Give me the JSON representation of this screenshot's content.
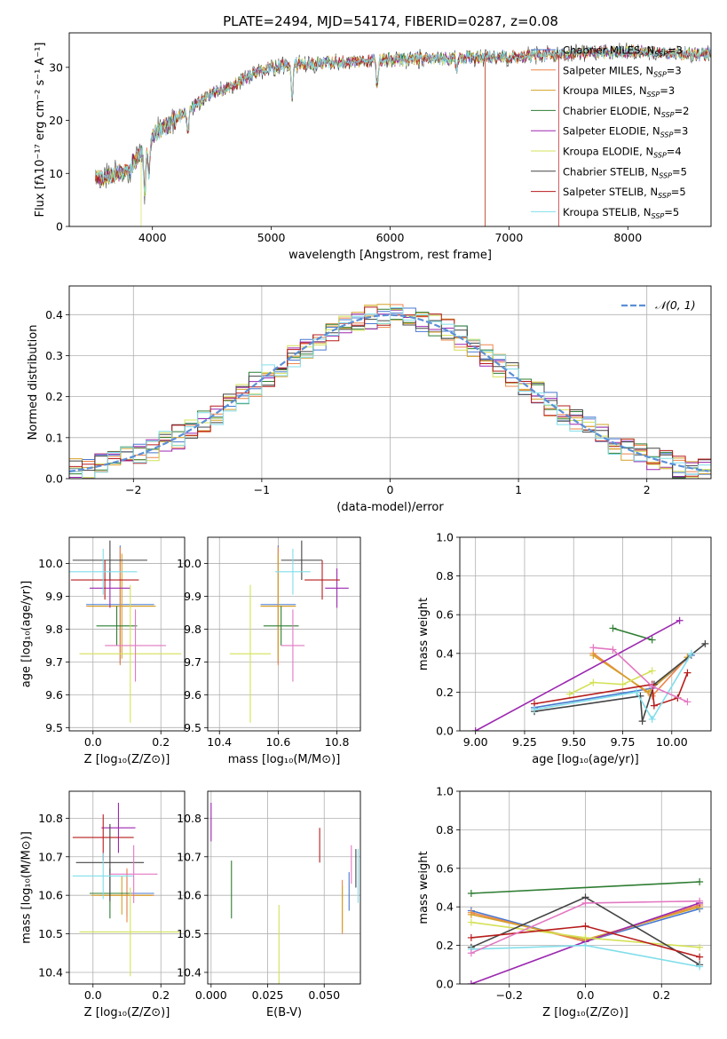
{
  "figure_title": "PLATE=2494, MJD=54174, FIBERID=0287, z=0.08",
  "colors": {
    "chabrier_miles": "#4878d0",
    "salpeter_miles": "#ee854a",
    "kroupa_miles": "#d5a027",
    "chabrier_elodie": "#2e7d32",
    "salpeter_elodie": "#9c27b0",
    "kroupa_elodie": "#d4e157",
    "chabrier_stelib": "#444444",
    "salpeter_stelib": "#b71c1c",
    "kroupa_stelib": "#80deea",
    "normal_curve": "#5b8fd6",
    "extra_pink": "#e377c2"
  },
  "chart_data": [
    {
      "id": "spectrum",
      "type": "line",
      "xlabel": "wavelength [Angstrom, rest frame]",
      "ylabel": "Flux [fλ10⁻¹⁷ erg cm⁻² s⁻¹ A⁻¹]",
      "xlim": [
        3300,
        8700
      ],
      "ylim": [
        0,
        36.5
      ],
      "xticks": [
        4000,
        5000,
        6000,
        7000,
        8000
      ],
      "yticks": [
        0,
        10,
        20,
        30
      ],
      "grid": false,
      "legend_position": "top-right",
      "legend": [
        "Chabrier MILES, N_SSP=3",
        "Salpeter MILES, N_SSP=3",
        "Kroupa MILES, N_SSP=3",
        "Chabrier ELODIE, N_SSP=2",
        "Salpeter ELODIE, N_SSP=3",
        "Kroupa ELODIE, N_SSP=4",
        "Chabrier STELIB, N_SSP=5",
        "Salpeter STELIB, N_SSP=5",
        "Kroupa STELIB, N_SSP=5"
      ],
      "continuum": {
        "x": [
          3520,
          3800,
          4000,
          4300,
          4500,
          4800,
          5000,
          5200,
          5500,
          6000,
          6500,
          7000,
          7500,
          8000,
          8500,
          8700
        ],
        "y": [
          9,
          10.5,
          17,
          22,
          25,
          28,
          30,
          30.5,
          31,
          31.5,
          31.8,
          32,
          32.5,
          33,
          32.5,
          32.5
        ]
      },
      "features": [
        {
          "x": 3935,
          "depth": 9
        },
        {
          "x": 3970,
          "depth": 6
        },
        {
          "x": 4300,
          "depth": 4
        },
        {
          "x": 5175,
          "depth": 6
        },
        {
          "x": 5890,
          "depth": 5
        },
        {
          "x": 6563,
          "depth": 2
        }
      ],
      "drops": [
        {
          "series": 5,
          "x": 3905
        },
        {
          "series": 7,
          "x": 6800
        },
        {
          "series": 5,
          "x": 6800
        },
        {
          "series": 7,
          "x": 7420
        }
      ]
    },
    {
      "id": "residuals",
      "type": "area",
      "xlabel": "(data-model)/error",
      "ylabel": "Normed distribution",
      "xlim": [
        -2.5,
        2.5
      ],
      "ylim": [
        0,
        0.47
      ],
      "xticks": [
        -2,
        -1,
        0,
        1,
        2
      ],
      "yticks": [
        0.0,
        0.1,
        0.2,
        0.3,
        0.4
      ],
      "grid": true,
      "legend_position": "top-right",
      "legend": [
        "𝒩(0, 1)"
      ],
      "bin_width": 0.1,
      "hist_series_count": 9
    },
    {
      "id": "age_vs_Z",
      "type": "scatter",
      "xlabel": "Z [log₁₀(Z/Z⊙)]",
      "ylabel": "age  [log₁₀(age/yr)]",
      "xlim": [
        -0.07,
        0.27
      ],
      "ylim": [
        9.49,
        10.08
      ],
      "xticks": [
        0.0,
        0.2
      ],
      "yticks": [
        9.5,
        9.6,
        9.7,
        9.8,
        9.9,
        10.0
      ],
      "grid": true,
      "points": [
        {
          "s": 0,
          "x": 0.08,
          "y": 9.875,
          "xe": 0.1,
          "ye": 0.18
        },
        {
          "s": 1,
          "x": 0.08,
          "y": 9.87,
          "xe": 0.1,
          "ye": 0.18
        },
        {
          "s": 2,
          "x": 0.085,
          "y": 9.87,
          "xe": 0.1,
          "ye": 0.16
        },
        {
          "s": 3,
          "x": 0.07,
          "y": 9.81,
          "xe": 0.06,
          "ye": 0.06
        },
        {
          "s": 4,
          "x": 0.05,
          "y": 9.925,
          "xe": 0.06,
          "ye": 0.06
        },
        {
          "s": 5,
          "x": 0.11,
          "y": 9.725,
          "xe": 0.15,
          "ye": 0.21
        },
        {
          "s": 6,
          "x": 0.05,
          "y": 10.01,
          "xe": 0.11,
          "ye": 0.06
        },
        {
          "s": 7,
          "x": 0.035,
          "y": 9.95,
          "xe": 0.1,
          "ye": 0.06
        },
        {
          "s": 8,
          "x": 0.03,
          "y": 9.975,
          "xe": 0.1,
          "ye": 0.07
        },
        {
          "s": 9,
          "x": 0.125,
          "y": 9.75,
          "xe": 0.09,
          "ye": 0.11
        }
      ]
    },
    {
      "id": "age_vs_mass",
      "type": "scatter",
      "xlabel": "mass [log₁₀(M/M⊙)]",
      "ylabel": "",
      "xlim": [
        10.36,
        10.88
      ],
      "ylim": [
        9.49,
        10.08
      ],
      "xticks": [
        10.4,
        10.6,
        10.8
      ],
      "yticks": [
        9.5,
        9.6,
        9.7,
        9.8,
        9.9,
        10.0
      ],
      "grid": true,
      "points": [
        {
          "s": 0,
          "x": 10.6,
          "y": 9.875,
          "xe": 0.06,
          "ye": 0.18
        },
        {
          "s": 1,
          "x": 10.6,
          "y": 9.87,
          "xe": 0.06,
          "ye": 0.18
        },
        {
          "s": 2,
          "x": 10.6,
          "y": 9.87,
          "xe": 0.06,
          "ye": 0.16
        },
        {
          "s": 3,
          "x": 10.61,
          "y": 9.81,
          "xe": 0.06,
          "ye": 0.06
        },
        {
          "s": 4,
          "x": 10.8,
          "y": 9.925,
          "xe": 0.04,
          "ye": 0.06
        },
        {
          "s": 5,
          "x": 10.505,
          "y": 9.725,
          "xe": 0.07,
          "ye": 0.21
        },
        {
          "s": 6,
          "x": 10.68,
          "y": 10.01,
          "xe": 0.07,
          "ye": 0.06
        },
        {
          "s": 7,
          "x": 10.75,
          "y": 9.95,
          "xe": 0.06,
          "ye": 0.06
        },
        {
          "s": 8,
          "x": 10.65,
          "y": 9.975,
          "xe": 0.06,
          "ye": 0.07
        },
        {
          "s": 9,
          "x": 10.65,
          "y": 9.75,
          "xe": 0.04,
          "ye": 0.11
        }
      ]
    },
    {
      "id": "weight_vs_age",
      "type": "line",
      "xlabel": "age  [log₁₀(age/yr)]",
      "ylabel": "mass weight",
      "xlim": [
        8.92,
        10.2
      ],
      "ylim": [
        0,
        1
      ],
      "xticks": [
        9.0,
        9.25,
        9.5,
        9.75,
        10.0
      ],
      "yticks": [
        0.0,
        0.2,
        0.4,
        0.6,
        0.8,
        1.0
      ],
      "grid": true,
      "series": [
        {
          "s": 0,
          "x": [
            9.3,
            9.9,
            10.1
          ],
          "y": [
            0.12,
            0.22,
            0.39
          ]
        },
        {
          "s": 1,
          "x": [
            9.6,
            9.9,
            10.08
          ],
          "y": [
            0.4,
            0.18,
            0.38
          ]
        },
        {
          "s": 2,
          "x": [
            9.6,
            9.88,
            10.08
          ],
          "y": [
            0.39,
            0.2,
            0.38
          ]
        },
        {
          "s": 3,
          "x": [
            9.7,
            9.9
          ],
          "y": [
            0.53,
            0.47
          ]
        },
        {
          "s": 4,
          "x": [
            9.0,
            10.04
          ],
          "y": [
            0.0,
            0.57
          ]
        },
        {
          "s": 5,
          "x": [
            9.48,
            9.6,
            9.75,
            9.9
          ],
          "y": [
            0.19,
            0.25,
            0.24,
            0.31
          ]
        },
        {
          "s": 6,
          "x": [
            9.3,
            9.84,
            9.85,
            9.91,
            10.17
          ],
          "y": [
            0.1,
            0.18,
            0.05,
            0.24,
            0.45
          ]
        },
        {
          "s": 7,
          "x": [
            9.3,
            9.9,
            9.91,
            10.03,
            10.08
          ],
          "y": [
            0.14,
            0.24,
            0.13,
            0.17,
            0.3
          ]
        },
        {
          "s": 8,
          "x": [
            9.3,
            9.82,
            9.9,
            10.1
          ],
          "y": [
            0.11,
            0.2,
            0.06,
            0.4
          ]
        },
        {
          "s": 9,
          "x": [
            9.6,
            9.7,
            9.9,
            10.08
          ],
          "y": [
            0.43,
            0.42,
            0.23,
            0.15
          ]
        }
      ]
    },
    {
      "id": "mass_vs_Z",
      "type": "scatter",
      "xlabel": "Z [log₁₀(Z/Z⊙)]",
      "ylabel": "mass [log₁₀(M/M⊙)]",
      "xlim": [
        -0.07,
        0.27
      ],
      "ylim": [
        10.37,
        10.87
      ],
      "xticks": [
        0.0,
        0.2
      ],
      "yticks": [
        10.4,
        10.5,
        10.6,
        10.7,
        10.8
      ],
      "grid": true,
      "points": [
        {
          "s": 0,
          "x": 0.1,
          "y": 10.605,
          "xe": 0.08,
          "ye": 0.06
        },
        {
          "s": 1,
          "x": 0.1,
          "y": 10.6,
          "xe": 0.08,
          "ye": 0.07
        },
        {
          "s": 2,
          "x": 0.085,
          "y": 10.6,
          "xe": 0.09,
          "ye": 0.05
        },
        {
          "s": 3,
          "x": 0.05,
          "y": 10.605,
          "xe": 0.06,
          "ye": 0.065
        },
        {
          "s": 4,
          "x": 0.075,
          "y": 10.775,
          "xe": 0.05,
          "ye": 0.065
        },
        {
          "s": 5,
          "x": 0.11,
          "y": 10.505,
          "xe": 0.15,
          "ye": 0.115
        },
        {
          "s": 6,
          "x": 0.05,
          "y": 10.685,
          "xe": 0.1,
          "ye": 0.1
        },
        {
          "s": 7,
          "x": 0.03,
          "y": 10.75,
          "xe": 0.09,
          "ye": 0.06
        },
        {
          "s": 8,
          "x": 0.03,
          "y": 10.65,
          "xe": 0.09,
          "ye": 0.06
        },
        {
          "s": 9,
          "x": 0.12,
          "y": 10.655,
          "xe": 0.07,
          "ye": 0.075
        }
      ]
    },
    {
      "id": "mass_vs_EBV",
      "type": "scatter",
      "xlabel": "E(B-V)",
      "ylabel": "",
      "xlim": [
        -0.0015,
        0.066
      ],
      "ylim": [
        10.37,
        10.87
      ],
      "xticks": [
        0.0,
        0.025,
        0.05
      ],
      "yticks": [
        10.4,
        10.5,
        10.6,
        10.7,
        10.8
      ],
      "grid": true,
      "points": [
        {
          "s": 0,
          "x": 0.061,
          "y": 10.61,
          "xe": 0,
          "ye": 0.05
        },
        {
          "s": 1,
          "x": 0.058,
          "y": 10.57,
          "xe": 0,
          "ye": 0.07
        },
        {
          "s": 2,
          "x": 0.058,
          "y": 10.565,
          "xe": 0,
          "ye": 0.06
        },
        {
          "s": 3,
          "x": 0.009,
          "y": 10.615,
          "xe": 0,
          "ye": 0.075
        },
        {
          "s": 4,
          "x": 0.0,
          "y": 10.79,
          "xe": 0,
          "ye": 0.05
        },
        {
          "s": 5,
          "x": 0.03,
          "y": 10.45,
          "xe": 0,
          "ye": 0.125
        },
        {
          "s": 6,
          "x": 0.064,
          "y": 10.67,
          "xe": 0,
          "ye": 0.05
        },
        {
          "s": 7,
          "x": 0.048,
          "y": 10.73,
          "xe": 0,
          "ye": 0.045
        },
        {
          "s": 8,
          "x": 0.065,
          "y": 10.65,
          "xe": 0,
          "ye": 0.07
        },
        {
          "s": 9,
          "x": 0.062,
          "y": 10.68,
          "xe": 0,
          "ye": 0.05
        }
      ]
    },
    {
      "id": "weight_vs_Z",
      "type": "line",
      "xlabel": "Z [log₁₀(Z/Z⊙)]",
      "ylabel": "mass weight",
      "xlim": [
        -0.33,
        0.33
      ],
      "ylim": [
        0,
        1
      ],
      "xticks": [
        -0.2,
        0.0,
        0.2
      ],
      "yticks": [
        0.0,
        0.2,
        0.4,
        0.6,
        0.8,
        1.0
      ],
      "grid": true,
      "series": [
        {
          "s": 0,
          "x": [
            -0.3,
            0.0,
            0.3
          ],
          "y": [
            0.38,
            0.22,
            0.39
          ]
        },
        {
          "s": 1,
          "x": [
            -0.3,
            0.0,
            0.3
          ],
          "y": [
            0.37,
            0.22,
            0.41
          ]
        },
        {
          "s": 2,
          "x": [
            -0.3,
            0.0,
            0.3
          ],
          "y": [
            0.36,
            0.23,
            0.4
          ]
        },
        {
          "s": 3,
          "x": [
            -0.3,
            0.3
          ],
          "y": [
            0.47,
            0.53
          ]
        },
        {
          "s": 4,
          "x": [
            -0.3,
            0.0,
            0.3
          ],
          "y": [
            0.0,
            0.22,
            0.42
          ]
        },
        {
          "s": 5,
          "x": [
            -0.3,
            0.0,
            0.3
          ],
          "y": [
            0.32,
            0.24,
            0.19
          ]
        },
        {
          "s": 6,
          "x": [
            -0.3,
            0.0,
            0.3
          ],
          "y": [
            0.19,
            0.45,
            0.1
          ]
        },
        {
          "s": 7,
          "x": [
            -0.3,
            0.0,
            0.3
          ],
          "y": [
            0.24,
            0.3,
            0.14
          ]
        },
        {
          "s": 8,
          "x": [
            -0.3,
            0.0,
            0.3
          ],
          "y": [
            0.18,
            0.2,
            0.09
          ]
        },
        {
          "s": 9,
          "x": [
            -0.3,
            0.0,
            0.3
          ],
          "y": [
            0.16,
            0.42,
            0.43
          ]
        }
      ]
    }
  ]
}
